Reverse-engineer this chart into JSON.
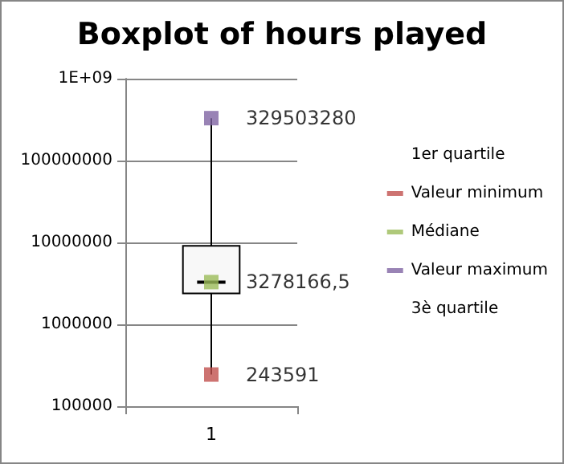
{
  "chart_data": {
    "type": "box",
    "title": "Boxplot of hours played",
    "categories": [
      "1"
    ],
    "boxes": [
      {
        "low": 243591,
        "q1": 2390000,
        "median": 3278166.5,
        "q3": 9100000,
        "high": 329503280
      }
    ],
    "series": [
      {
        "name": "1er quartile",
        "type": "line",
        "values": [
          null
        ]
      },
      {
        "name": "Valeur minimum",
        "type": "scatter",
        "color": "#c0504d",
        "values": [
          243591
        ],
        "value_labels": [
          "243591"
        ]
      },
      {
        "name": "Médiane",
        "type": "scatter",
        "color": "#9bbb59",
        "values": [
          3278166.5
        ],
        "value_labels": [
          "3278166,5"
        ]
      },
      {
        "name": "Valeur maximum",
        "type": "scatter",
        "color": "#8064a2",
        "values": [
          329503280
        ],
        "value_labels": [
          "329503280"
        ]
      },
      {
        "name": "3è quartile",
        "type": "line",
        "values": [
          null
        ]
      }
    ],
    "marker": "square",
    "log": true,
    "ylim": [
      100000,
      1000000000
    ],
    "yticks": [
      100000,
      1000000,
      10000000,
      100000000,
      {
        "value": 1000000000,
        "label": "1E+09"
      }
    ],
    "grid": "y",
    "legend": "right"
  }
}
